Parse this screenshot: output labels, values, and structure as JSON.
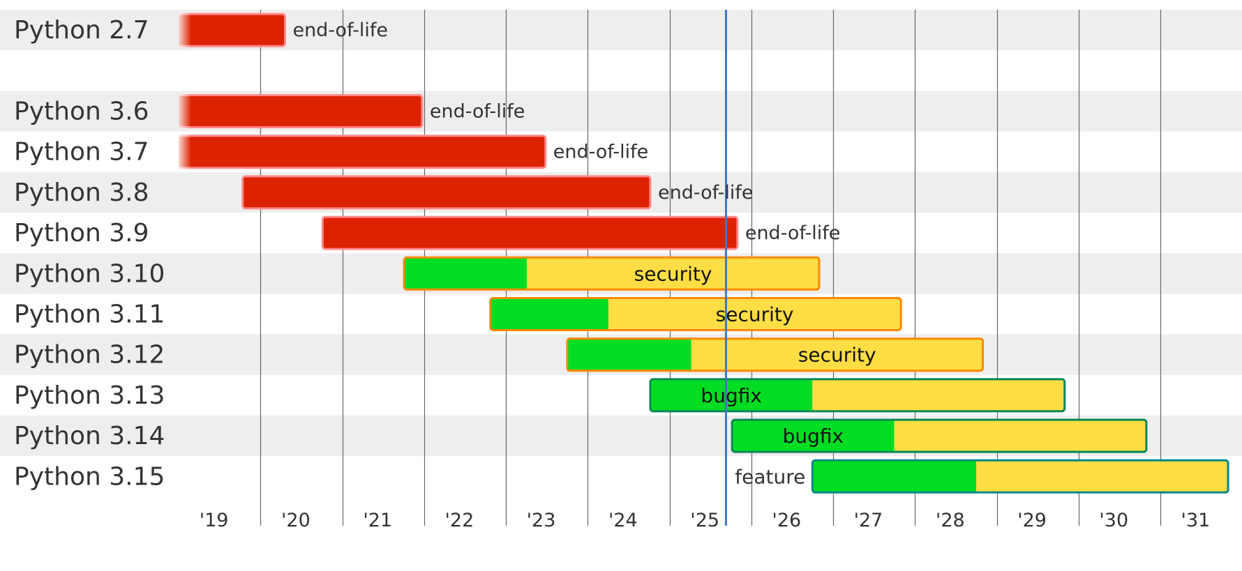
{
  "chart_data": {
    "type": "gantt",
    "title": "",
    "xlabel": "",
    "ylabel": "",
    "x_ticks": [
      "'19",
      "'20",
      "'21",
      "'22",
      "'23",
      "'24",
      "'25",
      "'26",
      "'27",
      "'28",
      "'29",
      "'30",
      "'31"
    ],
    "xlim": [
      "2019-01-01",
      "2031-12-31"
    ],
    "today": "2025-09-10",
    "grid": "vertical",
    "status_colors": {
      "end-of-life": {
        "fill": "#dd2200",
        "stroke": "#ff8888"
      },
      "bugfix_part": {
        "fill": "#00dd22"
      },
      "security_part": {
        "fill": "#ffdd44"
      },
      "security": {
        "stroke": "#ff8800"
      },
      "bugfix": {
        "stroke": "#008855"
      },
      "feature": {
        "stroke": "#008888"
      },
      "today_line": "#4477bb",
      "grid_line": "#666666",
      "row_band": "#eeeeee"
    },
    "rows": [
      {
        "label": "Python 2.7",
        "status": "end-of-life",
        "status_label": "end-of-life",
        "start": "2010-07-03",
        "end": "2020-04-20",
        "fade_left": true
      },
      {
        "label": "",
        "spacer": true
      },
      {
        "label": "Python 3.6",
        "status": "end-of-life",
        "status_label": "end-of-life",
        "start": "2016-12-23",
        "end": "2021-12-23",
        "fade_left": true
      },
      {
        "label": "Python 3.7",
        "status": "end-of-life",
        "status_label": "end-of-life",
        "start": "2018-06-27",
        "end": "2023-06-27",
        "fade_left": true
      },
      {
        "label": "Python 3.8",
        "status": "end-of-life",
        "status_label": "end-of-life",
        "start": "2019-10-14",
        "end": "2024-10-07"
      },
      {
        "label": "Python 3.9",
        "status": "end-of-life",
        "status_label": "end-of-life",
        "start": "2020-10-05",
        "end": "2025-10-31"
      },
      {
        "label": "Python 3.10",
        "status": "security",
        "status_label": "security",
        "start": "2021-10-04",
        "bugfix_end": "2023-04-05",
        "end": "2026-10-31"
      },
      {
        "label": "Python 3.11",
        "status": "security",
        "status_label": "security",
        "start": "2022-10-24",
        "bugfix_end": "2024-04-03",
        "end": "2027-10-31"
      },
      {
        "label": "Python 3.12",
        "status": "security",
        "status_label": "security",
        "start": "2023-10-02",
        "bugfix_end": "2025-04-08",
        "end": "2028-10-31"
      },
      {
        "label": "Python 3.13",
        "status": "bugfix",
        "status_label": "bugfix",
        "start": "2024-10-07",
        "bugfix_end": "2026-10-01",
        "end": "2029-10-31"
      },
      {
        "label": "Python 3.14",
        "status": "bugfix",
        "status_label": "bugfix",
        "start": "2025-10-07",
        "bugfix_end": "2027-10-01",
        "end": "2030-10-31"
      },
      {
        "label": "Python 3.15",
        "status": "feature",
        "status_label": "feature",
        "start": "2026-10-01",
        "bugfix_end": "2028-10-01",
        "end": "2031-10-31"
      }
    ]
  }
}
